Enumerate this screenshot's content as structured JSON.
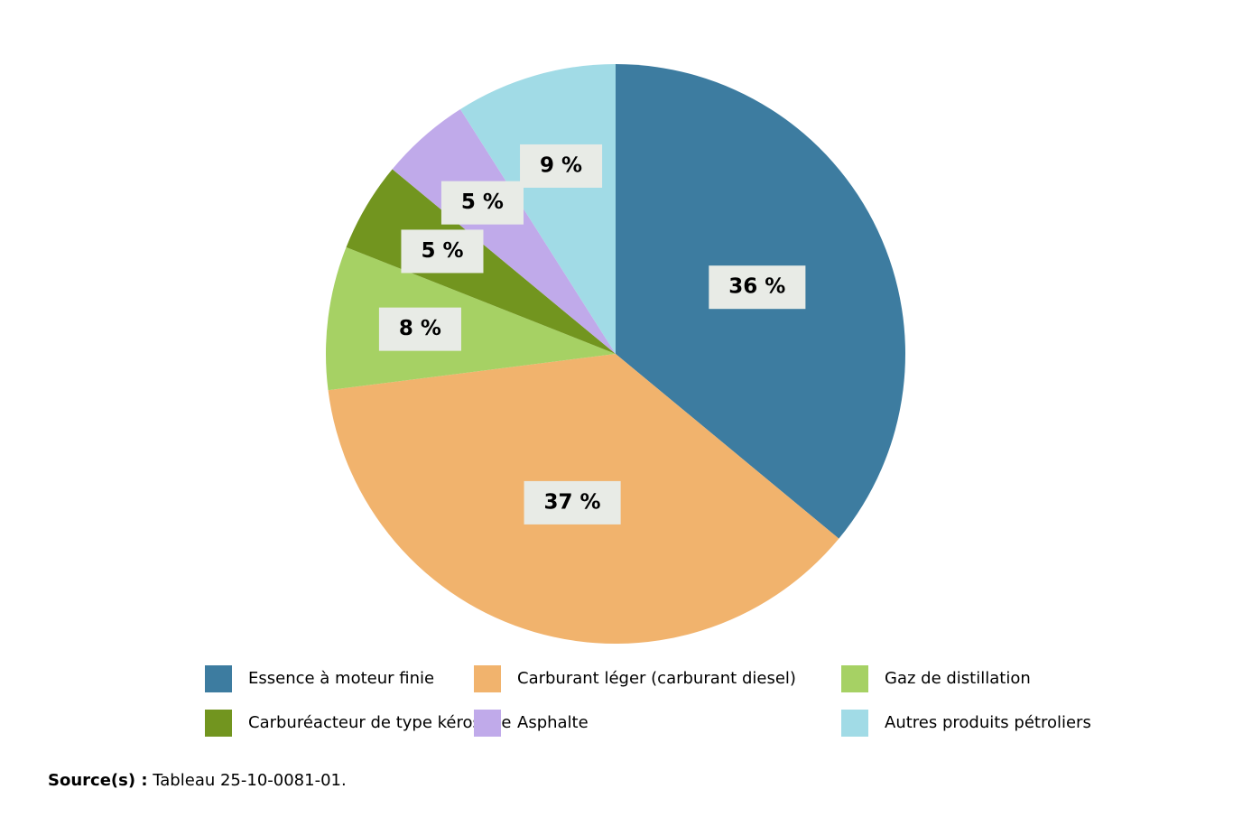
{
  "chart_data": {
    "type": "pie",
    "categories": [
      "Essence à moteur finie",
      "Carburant léger (carburant diesel)",
      "Gaz de distillation",
      "Carburéacteur de type kérosène",
      "Asphalte",
      "Autres produits pétroliers"
    ],
    "values": [
      36,
      37,
      8,
      5,
      5,
      9
    ],
    "value_labels": [
      "36 %",
      "37 %",
      "8 %",
      "5 %",
      "5 %",
      "9 %"
    ],
    "colors": [
      "#3d7ca0",
      "#f1b36d",
      "#a6d164",
      "#72951f",
      "#c0aaea",
      "#a1dbe6"
    ],
    "source_label": "Source(s) :",
    "source": "Tableau 25-10-0081-01."
  }
}
